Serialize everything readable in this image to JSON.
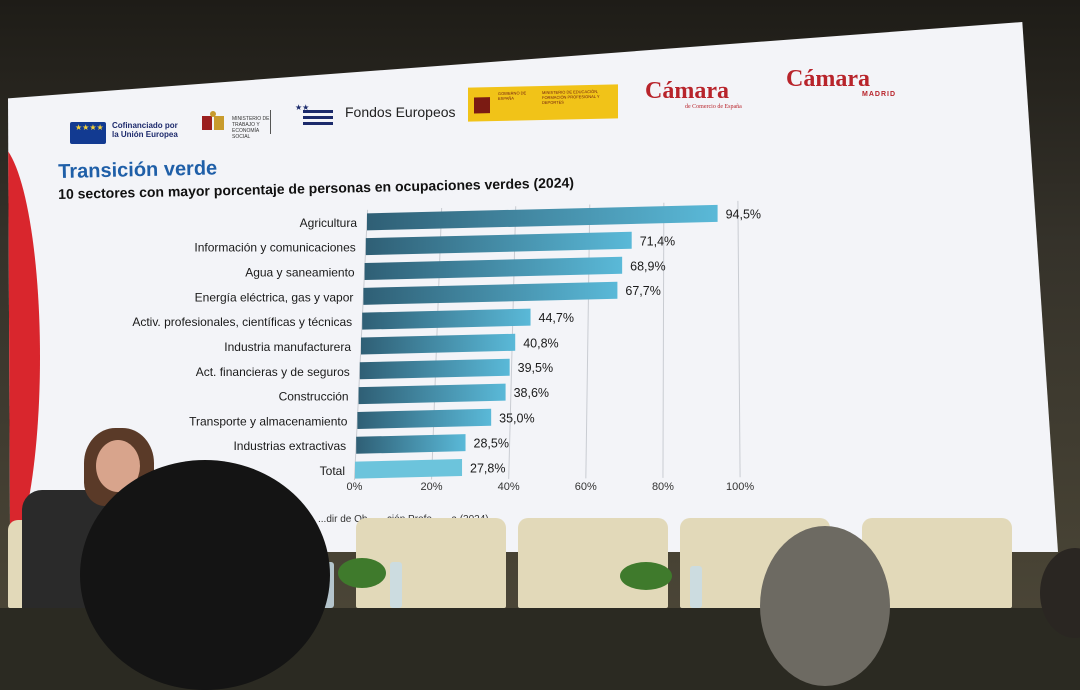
{
  "logos": {
    "eu_text": "Cofinanciado por la Unión Europea",
    "fondos_text": "Fondos Europeos",
    "ministry_text": "MINISTERIO DE TRABAJO Y ECONOMÍA SOCIAL",
    "gob_small_text": "GOBIERNO DE ESPAÑA",
    "gob_ministry_text": "MINISTERIO DE EDUCACIÓN, FORMACIÓN PROFESIONAL Y DEPORTES",
    "camara1": "Cámara",
    "camara1_sub": "de Comercio de España",
    "camara2": "Cámara",
    "camara2_sub": "MADRID"
  },
  "colors": {
    "title": "#1f5fa8",
    "bar_dark": "#2f5f75",
    "bar_light": "#5ab9d8",
    "total_bar": "#6cc4dc"
  },
  "footnote": "...dir de Ob...                    ...ción Profe...                                              ...a (2024)",
  "chart_data": {
    "type": "bar",
    "orientation": "horizontal",
    "title": "Transición verde",
    "subtitle": "10 sectores con mayor porcentaje de personas en ocupaciones verdes (2024)",
    "categories": [
      "Agricultura",
      "Información y comunicaciones",
      "Agua y saneamiento",
      "Energía eléctrica, gas y vapor",
      "Activ. profesionales, científicas y técnicas",
      "Industria manufacturera",
      "Act. financieras y de seguros",
      "Construcción",
      "Transporte y almacenamiento",
      "Industrias extractivas",
      "Total"
    ],
    "values": [
      94.5,
      71.4,
      68.9,
      67.7,
      44.7,
      40.8,
      39.5,
      38.6,
      35.0,
      28.5,
      27.8
    ],
    "value_labels": [
      "94,5%",
      "71,4%",
      "68,9%",
      "67,7%",
      "44,7%",
      "40,8%",
      "39,5%",
      "38,6%",
      "35,0%",
      "28,5%",
      "27,8%"
    ],
    "xlim": [
      0,
      100
    ],
    "ticks": [
      0,
      20,
      40,
      60,
      80,
      100
    ],
    "tick_labels": [
      "0%",
      "20%",
      "40%",
      "60%",
      "80%",
      "100%"
    ],
    "grid": true
  }
}
